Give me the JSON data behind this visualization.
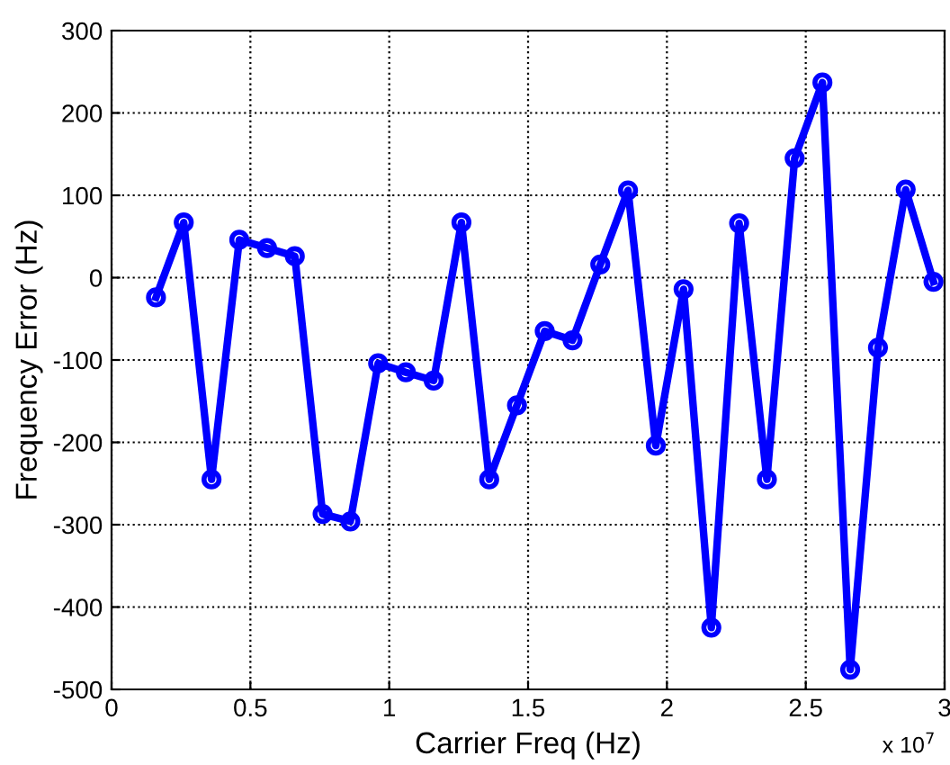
{
  "chart_data": {
    "type": "line",
    "xlabel": "Carrier Freq (Hz)",
    "ylabel": "Frequency Error (Hz)",
    "x": [
      0.16,
      0.26,
      0.36,
      0.46,
      0.56,
      0.66,
      0.76,
      0.86,
      0.96,
      1.06,
      1.16,
      1.26,
      1.36,
      1.46,
      1.56,
      1.66,
      1.76,
      1.86,
      1.96,
      2.06,
      2.16,
      2.26,
      2.36,
      2.46,
      2.56,
      2.66,
      2.76,
      2.86,
      2.96
    ],
    "series": [
      {
        "color": "#0000ff",
        "values": [
          -24,
          67,
          -245,
          46,
          36,
          26,
          -287,
          -296,
          -104,
          -115,
          -125,
          67,
          -245,
          -155,
          -65,
          -76,
          16,
          106,
          -204,
          -14,
          -425,
          66,
          -245,
          145,
          237,
          -476,
          -85,
          107,
          -5
        ]
      }
    ],
    "xlim": [
      0,
      3
    ],
    "xticks": [
      0,
      0.5,
      1,
      1.5,
      2,
      2.5,
      3
    ],
    "ylim": [
      -500,
      300
    ],
    "yticks": [
      -500,
      -400,
      -300,
      -200,
      -100,
      0,
      100,
      200,
      300
    ],
    "annotations": [
      "x 10$^{7}$"
    ],
    "grid": true,
    "marker": "circle",
    "line_style": "solid"
  }
}
